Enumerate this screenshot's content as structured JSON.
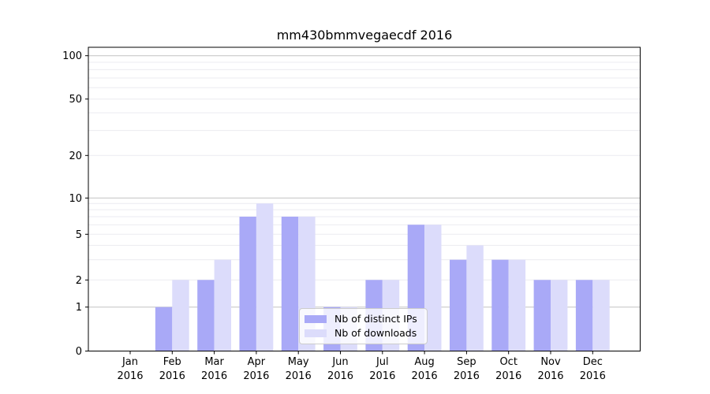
{
  "chart_data": {
    "type": "bar",
    "title": "mm430bmmvegaecdf 2016",
    "categories": [
      "Jan",
      "Feb",
      "Mar",
      "Apr",
      "May",
      "Jun",
      "Jul",
      "Aug",
      "Sep",
      "Oct",
      "Nov",
      "Dec"
    ],
    "x_tick_year": "2016",
    "series": [
      {
        "name": "Nb of distinct IPs",
        "color": "#a9a9f7",
        "values": [
          0,
          1,
          2,
          7,
          7,
          1,
          2,
          6,
          3,
          3,
          2,
          2
        ]
      },
      {
        "name": "Nb of downloads",
        "color": "#dcdcfb",
        "values": [
          0,
          2,
          3,
          9,
          7,
          1,
          2,
          6,
          4,
          3,
          2,
          2
        ]
      }
    ],
    "y_ticks": [
      0,
      1,
      2,
      5,
      10,
      20,
      50,
      100
    ],
    "yscale": "log-above-1-linear-below-1",
    "ylim": [
      0,
      115
    ],
    "grid": true,
    "legend_position": "lower center",
    "colors": {
      "major_gridline": "#c2c2c2",
      "minor_gridline": "#ebebf0",
      "spine": "#000000"
    }
  }
}
